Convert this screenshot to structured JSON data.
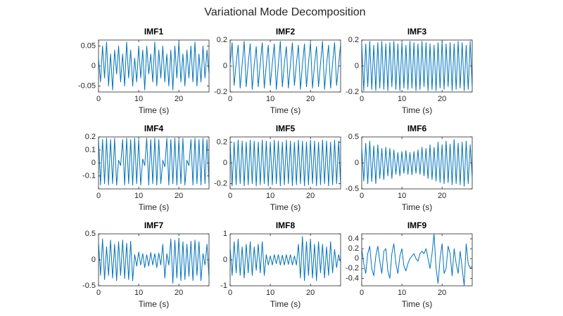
{
  "title": "Variational Mode Decomposition",
  "chart_data": [
    {
      "type": "line",
      "title": "IMF1",
      "xlabel": "Time (s)",
      "color": "#0072bd",
      "x": [
        0,
        0.5,
        1,
        1.5,
        2,
        2.5,
        3,
        3.5,
        4,
        4.5,
        5,
        5.5,
        6,
        6.5,
        7,
        7.5,
        8,
        8.5,
        9,
        9.5,
        10,
        10.5,
        11,
        11.5,
        12,
        12.5,
        13,
        13.5,
        14,
        14.5,
        15,
        15.5,
        16,
        16.5,
        17,
        17.5,
        18,
        18.5,
        19,
        19.5,
        20,
        20.5,
        21,
        21.5,
        22,
        22.5,
        23,
        23.5,
        24,
        24.5,
        25,
        25.5,
        26,
        26.5,
        27,
        27.5
      ],
      "values": [
        0.02,
        -0.04,
        0.05,
        -0.03,
        0.06,
        -0.05,
        0.03,
        -0.06,
        0.04,
        -0.02,
        0.05,
        -0.04,
        0.03,
        -0.05,
        0.06,
        -0.03,
        0.04,
        -0.05,
        0.02,
        -0.04,
        0.05,
        -0.03,
        0.04,
        -0.06,
        0.05,
        -0.02,
        0.03,
        -0.04,
        0.06,
        -0.05,
        0.04,
        -0.03,
        0.05,
        -0.04,
        0.03,
        -0.05,
        0.04,
        -0.06,
        0.05,
        -0.03,
        0.06,
        -0.04,
        0.03,
        -0.05,
        0.04,
        -0.03,
        0.05,
        -0.04,
        0.06,
        -0.05,
        0.03,
        -0.04,
        0.05,
        -0.03,
        0.04,
        -0.02
      ],
      "xlim": [
        0,
        27.5
      ],
      "ylim": [
        -0.065,
        0.065
      ],
      "xticks": [
        0,
        10,
        20
      ],
      "yticks": [
        -0.05,
        0,
        0.05
      ]
    },
    {
      "type": "line",
      "title": "IMF2",
      "xlabel": "Time (s)",
      "color": "#0072bd",
      "x": [
        0,
        0.5,
        1,
        1.5,
        2,
        2.5,
        3,
        3.5,
        4,
        4.5,
        5,
        5.5,
        6,
        6.5,
        7,
        7.5,
        8,
        8.5,
        9,
        9.5,
        10,
        10.5,
        11,
        11.5,
        12,
        12.5,
        13,
        13.5,
        14,
        14.5,
        15,
        15.5,
        16,
        16.5,
        17,
        17.5,
        18,
        18.5,
        19,
        19.5,
        20,
        20.5,
        21,
        21.5,
        22,
        22.5,
        23,
        23.5,
        24,
        24.5,
        25,
        25.5,
        26,
        26.5,
        27,
        27.5
      ],
      "values": [
        0.01,
        0.18,
        -0.15,
        0.02,
        0.16,
        -0.17,
        0.01,
        0.19,
        -0.16,
        0.02,
        0.17,
        -0.18,
        0.01,
        0.15,
        -0.16,
        0.02,
        0.18,
        -0.17,
        0.01,
        0.16,
        -0.15,
        0.02,
        0.17,
        -0.18,
        0.01,
        0.19,
        -0.16,
        0.02,
        0.15,
        -0.17,
        0.01,
        0.18,
        -0.15,
        0.02,
        0.16,
        -0.18,
        0.01,
        0.17,
        -0.16,
        0.02,
        0.18,
        -0.17,
        0.01,
        0.15,
        -0.16,
        0.02,
        0.19,
        -0.18,
        0.01,
        0.16,
        -0.17,
        0.02,
        0.18,
        -0.15,
        0.01,
        0.17
      ],
      "xlim": [
        0,
        27.5
      ],
      "ylim": [
        -0.2,
        0.2
      ],
      "xticks": [
        0,
        10,
        20
      ],
      "yticks": [
        -0.2,
        0,
        0.2
      ]
    },
    {
      "type": "line",
      "title": "IMF3",
      "xlabel": "Time (s)",
      "color": "#0072bd",
      "x": [
        0,
        0.5,
        1,
        1.5,
        2,
        2.5,
        3,
        3.5,
        4,
        4.5,
        5,
        5.5,
        6,
        6.5,
        7,
        7.5,
        8,
        8.5,
        9,
        9.5,
        10,
        10.5,
        11,
        11.5,
        12,
        12.5,
        13,
        13.5,
        14,
        14.5,
        15,
        15.5,
        16,
        16.5,
        17,
        17.5,
        18,
        18.5,
        19,
        19.5,
        20,
        20.5,
        21,
        21.5,
        22,
        22.5,
        23,
        23.5,
        24,
        24.5,
        25,
        25.5,
        26,
        26.5,
        27,
        27.5
      ],
      "values": [
        0.18,
        -0.19,
        0.17,
        -0.16,
        0.19,
        -0.18,
        0.16,
        -0.19,
        0.18,
        -0.17,
        0.19,
        -0.18,
        0.17,
        -0.19,
        0.18,
        -0.16,
        0.19,
        -0.18,
        0.17,
        -0.19,
        0.18,
        -0.17,
        0.16,
        -0.18,
        0.19,
        -0.17,
        0.18,
        -0.19,
        0.17,
        -0.18,
        0.19,
        -0.16,
        0.18,
        -0.19,
        0.17,
        -0.18,
        0.16,
        -0.19,
        0.18,
        -0.17,
        0.19,
        -0.18,
        0.17,
        -0.16,
        0.18,
        -0.19,
        0.17,
        -0.18,
        0.19,
        -0.17,
        0.18,
        -0.19,
        0.16,
        -0.18,
        0.19,
        -0.17
      ],
      "xlim": [
        0,
        27.5
      ],
      "ylim": [
        -0.2,
        0.2
      ],
      "xticks": [
        0,
        10,
        20
      ],
      "yticks": [
        -0.2,
        0,
        0.2
      ]
    },
    {
      "type": "line",
      "title": "IMF4",
      "xlabel": "Time (s)",
      "color": "#0072bd",
      "x": [
        0,
        0.5,
        1,
        1.5,
        2,
        2.5,
        3,
        3.5,
        4,
        4.5,
        5,
        5.5,
        6,
        6.5,
        7,
        7.5,
        8,
        8.5,
        9,
        9.5,
        10,
        10.5,
        11,
        11.5,
        12,
        12.5,
        13,
        13.5,
        14,
        14.5,
        15,
        15.5,
        16,
        16.5,
        17,
        17.5,
        18,
        18.5,
        19,
        19.5,
        20,
        20.5,
        21,
        21.5,
        22,
        22.5,
        23,
        23.5,
        24,
        24.5,
        25,
        25.5,
        26,
        26.5,
        27,
        27.5
      ],
      "values": [
        0.19,
        -0.17,
        0.18,
        -0.16,
        0.19,
        -0.17,
        0.18,
        -0.16,
        0.19,
        -0.17,
        0.02,
        -0.02,
        0.18,
        -0.17,
        0.19,
        -0.16,
        0.18,
        -0.17,
        0.19,
        -0.16,
        0.18,
        -0.17,
        0.03,
        -0.02,
        0.19,
        -0.17,
        0.18,
        -0.16,
        0.19,
        -0.17,
        0.18,
        -0.16,
        0.02,
        -0.03,
        0.19,
        -0.17,
        0.18,
        -0.16,
        0.19,
        -0.17,
        0.18,
        -0.16,
        0.19,
        -0.17,
        0.02,
        -0.02,
        0.18,
        -0.17,
        0.19,
        -0.16,
        0.18,
        -0.17,
        0.19,
        -0.16,
        0.18,
        -0.17
      ],
      "xlim": [
        0,
        27.5
      ],
      "ylim": [
        -0.2,
        0.2
      ],
      "xticks": [
        0,
        10,
        20
      ],
      "yticks": [
        -0.1,
        0,
        0.1,
        0.2
      ]
    },
    {
      "type": "line",
      "title": "IMF5",
      "xlabel": "Time (s)",
      "color": "#0072bd",
      "x": [
        0,
        0.5,
        1,
        1.5,
        2,
        2.5,
        3,
        3.5,
        4,
        4.5,
        5,
        5.5,
        6,
        6.5,
        7,
        7.5,
        8,
        8.5,
        9,
        9.5,
        10,
        10.5,
        11,
        11.5,
        12,
        12.5,
        13,
        13.5,
        14,
        14.5,
        15,
        15.5,
        16,
        16.5,
        17,
        17.5,
        18,
        18.5,
        19,
        19.5,
        20,
        20.5,
        21,
        21.5,
        22,
        22.5,
        23,
        23.5,
        24,
        24.5,
        25,
        25.5,
        26,
        26.5,
        27,
        27.5
      ],
      "values": [
        0.21,
        -0.22,
        0.2,
        -0.21,
        0.22,
        -0.2,
        0.21,
        -0.22,
        0.2,
        -0.21,
        0.22,
        -0.2,
        0.21,
        -0.22,
        0.2,
        -0.21,
        0.22,
        -0.2,
        0.21,
        -0.22,
        0.2,
        -0.21,
        0.22,
        -0.2,
        0.21,
        -0.22,
        0.2,
        -0.21,
        0.22,
        -0.2,
        0.21,
        -0.22,
        0.2,
        -0.21,
        0.22,
        -0.2,
        0.21,
        -0.22,
        0.2,
        -0.21,
        0.22,
        -0.2,
        0.21,
        -0.22,
        0.2,
        -0.21,
        0.22,
        -0.2,
        0.21,
        -0.22,
        0.2,
        -0.21,
        0.22,
        -0.2,
        0.21,
        -0.22
      ],
      "xlim": [
        0,
        27.5
      ],
      "ylim": [
        -0.25,
        0.25
      ],
      "xticks": [
        0,
        10,
        20
      ],
      "yticks": [
        -0.2,
        0,
        0.2
      ]
    },
    {
      "type": "line",
      "title": "IMF6",
      "xlabel": "Time (s)",
      "color": "#0072bd",
      "x": [
        0,
        0.5,
        1,
        1.5,
        2,
        2.5,
        3,
        3.5,
        4,
        4.5,
        5,
        5.5,
        6,
        6.5,
        7,
        7.5,
        8,
        8.5,
        9,
        9.5,
        10,
        10.5,
        11,
        11.5,
        12,
        12.5,
        13,
        13.5,
        14,
        14.5,
        15,
        15.5,
        16,
        16.5,
        17,
        17.5,
        18,
        18.5,
        19,
        19.5,
        20,
        20.5,
        21,
        21.5,
        22,
        22.5,
        23,
        23.5,
        24,
        24.5,
        25,
        25.5,
        26,
        26.5,
        27,
        27.5
      ],
      "values": [
        0.3,
        -0.35,
        0.38,
        -0.4,
        0.42,
        -0.36,
        0.33,
        -0.4,
        0.35,
        -0.3,
        0.28,
        -0.32,
        0.3,
        -0.25,
        0.28,
        -0.3,
        0.25,
        -0.22,
        0.2,
        -0.25,
        0.22,
        -0.2,
        0.24,
        -0.22,
        0.2,
        -0.23,
        0.22,
        -0.2,
        0.25,
        -0.22,
        0.3,
        -0.25,
        0.28,
        -0.3,
        0.35,
        -0.32,
        0.3,
        -0.35,
        0.4,
        -0.38,
        0.35,
        -0.4,
        0.42,
        -0.38,
        0.36,
        -0.42,
        0.45,
        -0.4,
        0.38,
        -0.42,
        0.4,
        -0.45,
        0.42,
        -0.4,
        0.35,
        -0.3
      ],
      "xlim": [
        0,
        27.5
      ],
      "ylim": [
        -0.5,
        0.5
      ],
      "xticks": [
        0,
        10,
        20
      ],
      "yticks": [
        -0.5,
        0,
        0.5
      ]
    },
    {
      "type": "line",
      "title": "IMF7",
      "xlabel": "Time (s)",
      "color": "#0072bd",
      "x": [
        0,
        0.5,
        1,
        1.5,
        2,
        2.5,
        3,
        3.5,
        4,
        4.5,
        5,
        5.5,
        6,
        6.5,
        7,
        7.5,
        8,
        8.5,
        9,
        9.5,
        10,
        10.5,
        11,
        11.5,
        12,
        12.5,
        13,
        13.5,
        14,
        14.5,
        15,
        15.5,
        16,
        16.5,
        17,
        17.5,
        18,
        18.5,
        19,
        19.5,
        20,
        20.5,
        21,
        21.5,
        22,
        22.5,
        23,
        23.5,
        24,
        24.5,
        25,
        25.5,
        26,
        26.5,
        27,
        27.5
      ],
      "values": [
        0.35,
        -0.3,
        0.4,
        -0.38,
        0.25,
        -0.3,
        0.38,
        -0.35,
        0.3,
        -0.4,
        0.35,
        -0.3,
        0.38,
        -0.36,
        0.32,
        -0.38,
        0.36,
        -0.4,
        0.1,
        -0.12,
        0.15,
        -0.1,
        0.12,
        -0.15,
        0.1,
        -0.12,
        0.14,
        -0.1,
        0.12,
        -0.15,
        0.13,
        -0.1,
        0.3,
        -0.35,
        0.12,
        -0.1,
        0.4,
        -0.45,
        0.38,
        -0.35,
        0.42,
        -0.4,
        0.35,
        -0.38,
        0.3,
        -0.32,
        0.36,
        -0.4,
        0.38,
        -0.3,
        0.35,
        -0.4,
        0.12,
        -0.1,
        0.3,
        -0.35
      ],
      "xlim": [
        0,
        27.5
      ],
      "ylim": [
        -0.5,
        0.5
      ],
      "xticks": [
        0,
        10,
        20
      ],
      "yticks": [
        -0.5,
        0,
        0.5
      ]
    },
    {
      "type": "line",
      "title": "IMF8",
      "xlabel": "Time (s)",
      "color": "#0072bd",
      "x": [
        0,
        0.5,
        1,
        1.5,
        2,
        2.5,
        3,
        3.5,
        4,
        4.5,
        5,
        5.5,
        6,
        6.5,
        7,
        7.5,
        8,
        8.5,
        9,
        9.5,
        10,
        10.5,
        11,
        11.5,
        12,
        12.5,
        13,
        13.5,
        14,
        14.5,
        15,
        15.5,
        16,
        16.5,
        17,
        17.5,
        18,
        18.5,
        19,
        19.5,
        20,
        20.5,
        21,
        21.5,
        22,
        22.5,
        23,
        23.5,
        24,
        24.5,
        25,
        25.5,
        26,
        26.5,
        27,
        27.5
      ],
      "values": [
        0.5,
        -0.6,
        0.7,
        -0.5,
        0.8,
        -0.6,
        0.5,
        -0.7,
        0.6,
        -0.5,
        0.7,
        -0.6,
        0.5,
        -0.4,
        0.6,
        -0.5,
        0.7,
        -0.6,
        0.2,
        -0.2,
        0.15,
        -0.2,
        0.2,
        -0.15,
        0.2,
        -0.2,
        0.18,
        -0.2,
        0.2,
        -0.18,
        0.2,
        -0.2,
        0.15,
        -0.2,
        0.6,
        -0.7,
        0.9,
        -0.8,
        0.7,
        -0.6,
        0.8,
        -0.7,
        0.6,
        -0.8,
        0.7,
        -0.5,
        0.6,
        -0.7,
        0.5,
        -0.6,
        0.7,
        -0.5,
        0.4,
        -0.3,
        0.2,
        -0.1
      ],
      "xlim": [
        0,
        27.5
      ],
      "ylim": [
        -1,
        1
      ],
      "xticks": [
        0,
        10,
        20
      ],
      "yticks": [
        -1,
        0,
        1
      ]
    },
    {
      "type": "line",
      "title": "IMF9",
      "xlabel": "Time (s)",
      "color": "#0072bd",
      "x": [
        0,
        0.5,
        1,
        1.5,
        2,
        2.5,
        3,
        3.5,
        4,
        4.5,
        5,
        5.5,
        6,
        6.5,
        7,
        7.5,
        8,
        8.5,
        9,
        9.5,
        10,
        10.5,
        11,
        11.5,
        12,
        12.5,
        13,
        13.5,
        14,
        14.5,
        15,
        15.5,
        16,
        16.5,
        17,
        17.5,
        18,
        18.5,
        19,
        19.5,
        20,
        20.5,
        21,
        21.5,
        22,
        22.5,
        23,
        23.5,
        24,
        24.5,
        25,
        25.5,
        26,
        26.5,
        27,
        27.5
      ],
      "values": [
        0.2,
        -0.1,
        -0.3,
        0.1,
        0.25,
        -0.2,
        -0.35,
        0.05,
        0.25,
        -0.05,
        -0.3,
        0.15,
        0.2,
        -0.25,
        -0.4,
        0.1,
        0.3,
        -0.1,
        -0.3,
        0.05,
        0.2,
        -0.15,
        -0.25,
        -0.1,
        0.0,
        0.05,
        0.1,
        0.0,
        -0.05,
        0.1,
        0.15,
        0.1,
        0.2,
        0.0,
        -0.2,
        0.1,
        0.5,
        -0.2,
        -0.5,
        0.0,
        0.3,
        -0.3,
        -0.2,
        0.25,
        0.1,
        -0.35,
        0.2,
        -0.1,
        -0.3,
        0.15,
        -0.2,
        -0.55,
        0.3,
        -0.1,
        -0.2,
        -0.15
      ],
      "xlim": [
        0,
        27.5
      ],
      "ylim": [
        -0.55,
        0.5
      ],
      "xticks": [
        0,
        10,
        20
      ],
      "yticks": [
        -0.4,
        -0.2,
        0,
        0.2,
        0.4
      ]
    }
  ]
}
